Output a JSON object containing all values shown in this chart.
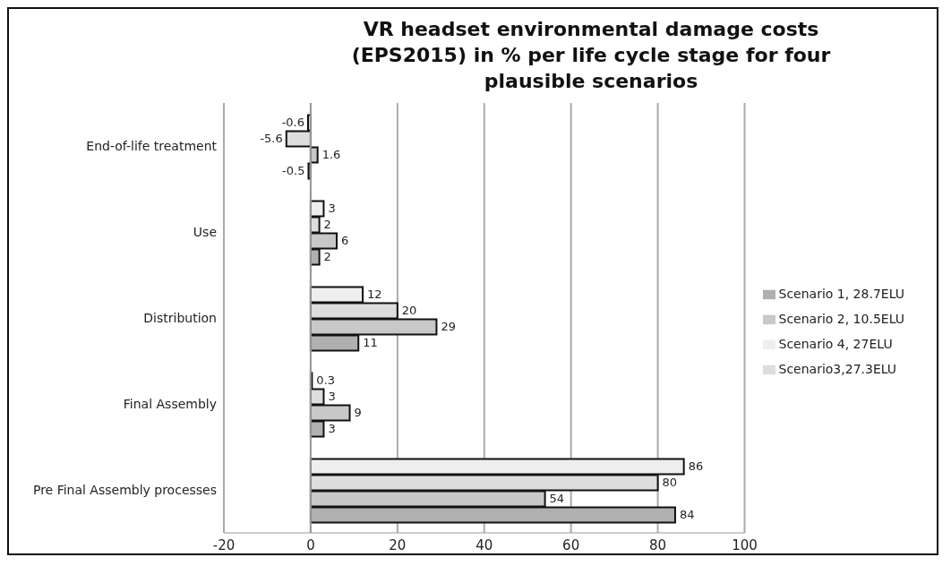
{
  "chart_data": {
    "type": "bar",
    "orientation": "horizontal",
    "title": "VR headset environmental damage costs (EPS2015) in % per life cycle stage for four plausible scenarios",
    "categories": [
      "End-of-life treatment",
      "Use",
      "Distribution",
      "Final Assembly",
      "Pre Final Assembly processes"
    ],
    "series": [
      {
        "name": "Scenario 4, 27ELU",
        "color": "#eeeeee",
        "values": [
          -0.6,
          3,
          12,
          0.3,
          86
        ]
      },
      {
        "name": "Scenario3,27.3ELU",
        "color": "#dddddd",
        "values": [
          -5.6,
          2,
          20,
          3,
          80
        ]
      },
      {
        "name": "Scenario 2, 10.5ELU",
        "color": "#c8c8c8",
        "values": [
          1.6,
          6,
          29,
          9,
          54
        ]
      },
      {
        "name": "Scenario 1, 28.7ELU",
        "color": "#b0b0b0",
        "values": [
          -0.5,
          2,
          11,
          3,
          84
        ]
      }
    ],
    "xlim": [
      -20,
      100
    ],
    "xticks": [
      -20,
      0,
      20,
      40,
      60,
      80,
      100
    ],
    "grid": "x",
    "legend": "right",
    "data_labels": true
  }
}
